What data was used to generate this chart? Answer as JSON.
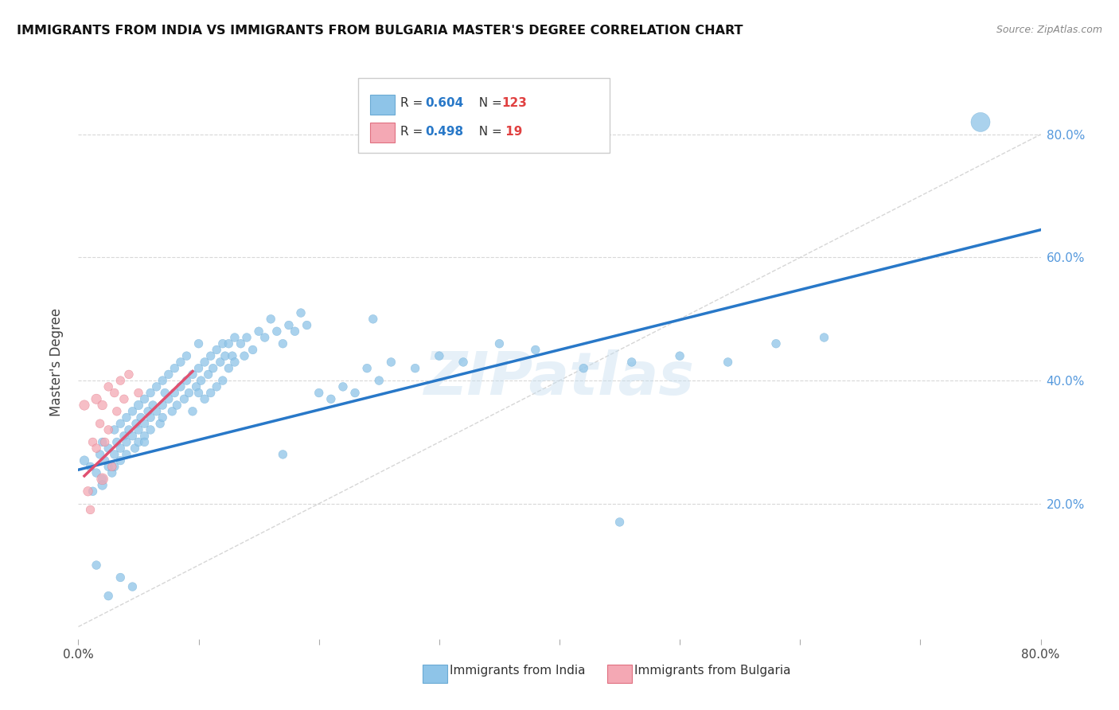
{
  "title": "IMMIGRANTS FROM INDIA VS IMMIGRANTS FROM BULGARIA MASTER'S DEGREE CORRELATION CHART",
  "source": "Source: ZipAtlas.com",
  "ylabel": "Master's Degree",
  "y_ticks_right": [
    "20.0%",
    "40.0%",
    "60.0%",
    "80.0%"
  ],
  "y_tick_vals": [
    0.2,
    0.4,
    0.6,
    0.8
  ],
  "x_range": [
    0.0,
    0.8
  ],
  "y_range": [
    -0.02,
    0.88
  ],
  "legend_india_R": "0.604",
  "legend_india_N": "123",
  "legend_bulgaria_R": "0.498",
  "legend_bulgaria_N": " 19",
  "india_color": "#8ec4e8",
  "india_edge_color": "#6aaad4",
  "bulgaria_color": "#f4a8b4",
  "bulgaria_edge_color": "#e07080",
  "india_line_color": "#2878c8",
  "bulgaria_line_color": "#e05070",
  "diagonal_color": "#cccccc",
  "watermark": "ZIPatlas",
  "india_line_x0": 0.0,
  "india_line_y0": 0.255,
  "india_line_x1": 0.8,
  "india_line_y1": 0.645,
  "bulgaria_line_x0": 0.005,
  "bulgaria_line_y0": 0.245,
  "bulgaria_line_x1": 0.095,
  "bulgaria_line_y1": 0.415,
  "india_points_x": [
    0.005,
    0.01,
    0.012,
    0.015,
    0.018,
    0.02,
    0.02,
    0.02,
    0.022,
    0.025,
    0.025,
    0.028,
    0.03,
    0.03,
    0.03,
    0.032,
    0.035,
    0.035,
    0.035,
    0.038,
    0.04,
    0.04,
    0.04,
    0.042,
    0.045,
    0.045,
    0.047,
    0.048,
    0.05,
    0.05,
    0.05,
    0.052,
    0.055,
    0.055,
    0.055,
    0.058,
    0.06,
    0.06,
    0.06,
    0.062,
    0.065,
    0.065,
    0.068,
    0.07,
    0.07,
    0.07,
    0.072,
    0.075,
    0.075,
    0.078,
    0.08,
    0.08,
    0.082,
    0.085,
    0.085,
    0.088,
    0.09,
    0.09,
    0.092,
    0.095,
    0.095,
    0.098,
    0.1,
    0.1,
    0.1,
    0.102,
    0.105,
    0.105,
    0.108,
    0.11,
    0.11,
    0.112,
    0.115,
    0.115,
    0.118,
    0.12,
    0.12,
    0.122,
    0.125,
    0.125,
    0.128,
    0.13,
    0.13,
    0.135,
    0.138,
    0.14,
    0.145,
    0.15,
    0.155,
    0.16,
    0.165,
    0.17,
    0.175,
    0.18,
    0.185,
    0.19,
    0.2,
    0.21,
    0.22,
    0.23,
    0.24,
    0.25,
    0.26,
    0.28,
    0.3,
    0.32,
    0.35,
    0.38,
    0.42,
    0.46,
    0.5,
    0.54,
    0.58,
    0.62,
    0.015,
    0.025,
    0.035,
    0.045,
    0.055,
    0.17,
    0.245,
    0.45,
    0.75
  ],
  "india_points_y": [
    0.27,
    0.26,
    0.22,
    0.25,
    0.28,
    0.24,
    0.3,
    0.23,
    0.27,
    0.26,
    0.29,
    0.25,
    0.28,
    0.32,
    0.26,
    0.3,
    0.29,
    0.33,
    0.27,
    0.31,
    0.3,
    0.34,
    0.28,
    0.32,
    0.31,
    0.35,
    0.29,
    0.33,
    0.32,
    0.36,
    0.3,
    0.34,
    0.33,
    0.37,
    0.31,
    0.35,
    0.34,
    0.38,
    0.32,
    0.36,
    0.35,
    0.39,
    0.33,
    0.36,
    0.4,
    0.34,
    0.38,
    0.37,
    0.41,
    0.35,
    0.38,
    0.42,
    0.36,
    0.39,
    0.43,
    0.37,
    0.4,
    0.44,
    0.38,
    0.41,
    0.35,
    0.39,
    0.42,
    0.38,
    0.46,
    0.4,
    0.43,
    0.37,
    0.41,
    0.44,
    0.38,
    0.42,
    0.45,
    0.39,
    0.43,
    0.46,
    0.4,
    0.44,
    0.42,
    0.46,
    0.44,
    0.47,
    0.43,
    0.46,
    0.44,
    0.47,
    0.45,
    0.48,
    0.47,
    0.5,
    0.48,
    0.46,
    0.49,
    0.48,
    0.51,
    0.49,
    0.38,
    0.37,
    0.39,
    0.38,
    0.42,
    0.4,
    0.43,
    0.42,
    0.44,
    0.43,
    0.46,
    0.45,
    0.42,
    0.43,
    0.44,
    0.43,
    0.46,
    0.47,
    0.1,
    0.05,
    0.08,
    0.065,
    0.3,
    0.28,
    0.5,
    0.17,
    0.82
  ],
  "india_sizes": [
    70,
    60,
    60,
    60,
    60,
    60,
    60,
    70,
    60,
    60,
    60,
    60,
    60,
    60,
    60,
    60,
    60,
    60,
    60,
    60,
    60,
    60,
    60,
    60,
    60,
    60,
    60,
    60,
    60,
    70,
    60,
    60,
    60,
    60,
    60,
    60,
    60,
    60,
    60,
    60,
    60,
    60,
    60,
    60,
    60,
    60,
    60,
    60,
    60,
    60,
    60,
    60,
    60,
    60,
    60,
    60,
    60,
    60,
    60,
    60,
    60,
    60,
    60,
    60,
    60,
    60,
    60,
    60,
    60,
    60,
    60,
    60,
    60,
    60,
    60,
    60,
    60,
    60,
    60,
    60,
    60,
    60,
    60,
    60,
    60,
    60,
    60,
    60,
    60,
    60,
    60,
    60,
    60,
    60,
    60,
    60,
    60,
    60,
    60,
    60,
    60,
    60,
    60,
    60,
    60,
    60,
    60,
    60,
    60,
    60,
    60,
    60,
    60,
    60,
    60,
    60,
    60,
    60,
    60,
    60,
    60,
    60,
    300
  ],
  "bulgaria_points_x": [
    0.005,
    0.008,
    0.01,
    0.012,
    0.015,
    0.015,
    0.018,
    0.02,
    0.02,
    0.022,
    0.025,
    0.025,
    0.028,
    0.03,
    0.032,
    0.035,
    0.038,
    0.042,
    0.05
  ],
  "bulgaria_points_y": [
    0.36,
    0.22,
    0.19,
    0.3,
    0.37,
    0.29,
    0.33,
    0.36,
    0.24,
    0.3,
    0.39,
    0.32,
    0.26,
    0.38,
    0.35,
    0.4,
    0.37,
    0.41,
    0.38
  ],
  "bulgaria_sizes": [
    80,
    70,
    60,
    60,
    80,
    60,
    60,
    70,
    100,
    60,
    60,
    60,
    60,
    60,
    60,
    60,
    60,
    60,
    60
  ]
}
